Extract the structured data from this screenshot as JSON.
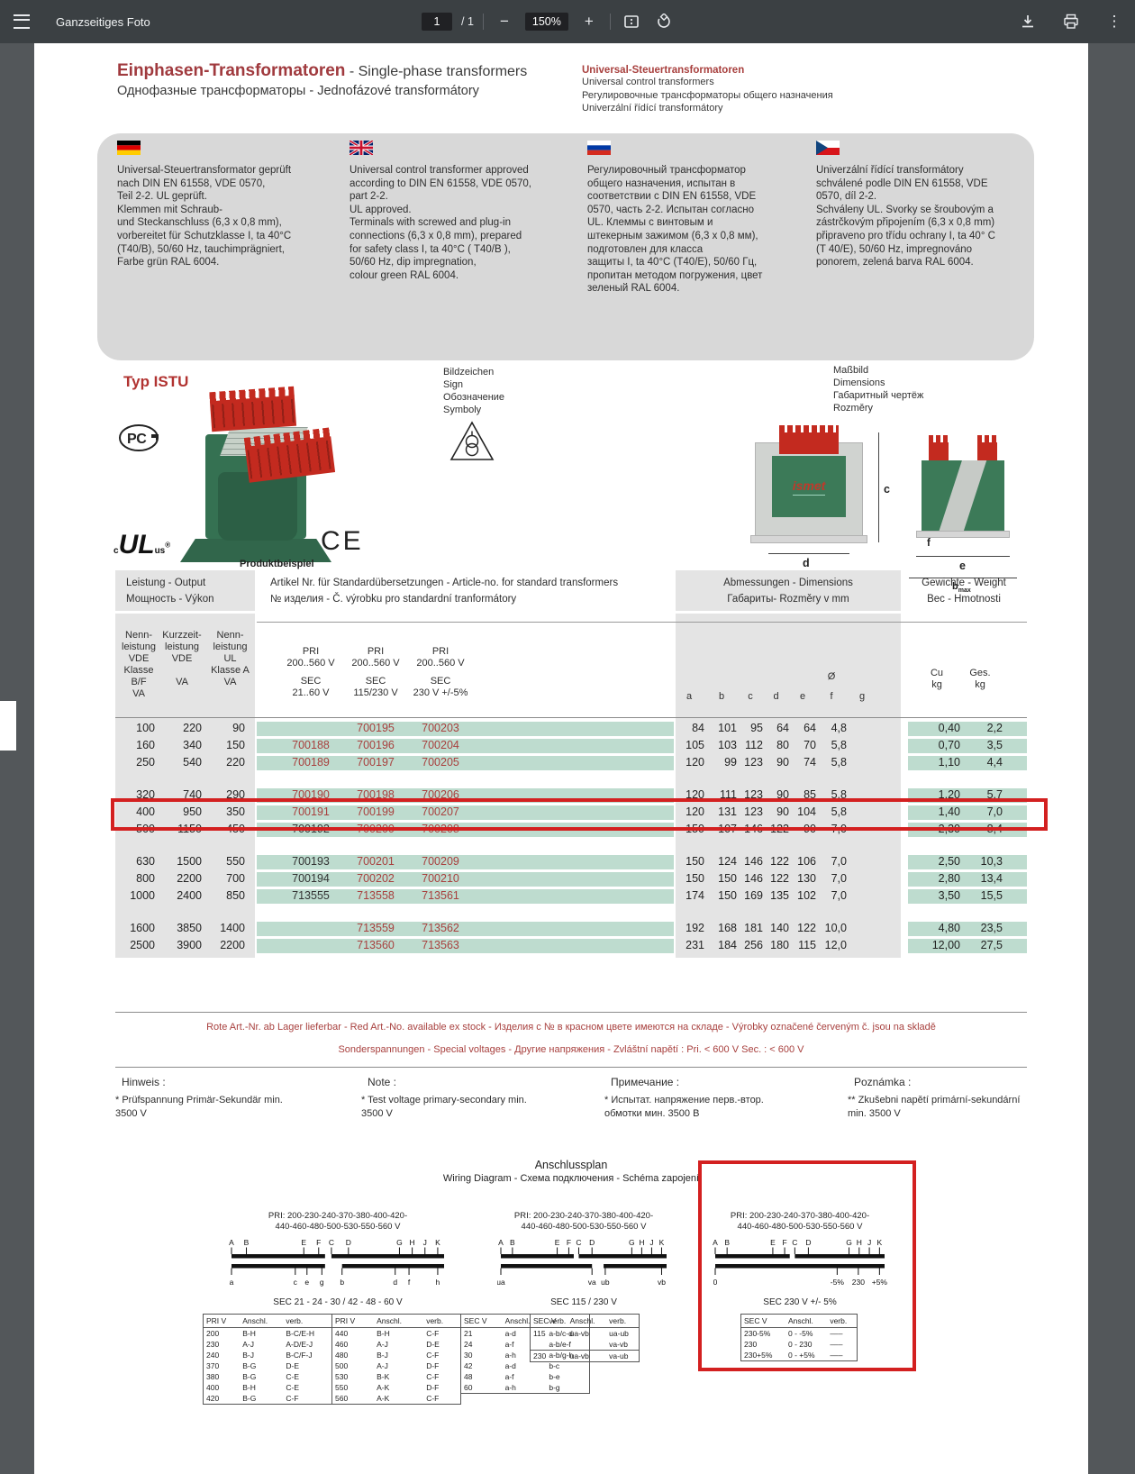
{
  "toolbar": {
    "title": "Ganzseitiges Foto",
    "page_current": "1",
    "page_total": "/ 1",
    "zoom_level": "150%"
  },
  "header": {
    "title_de": "Einphasen-Transformatoren",
    "title_en": " - Single-phase transformers",
    "subtitle": "Однофазные трансформаторы - Jednofázové transformátory",
    "right_title": "Universal-Steuertransformatoren",
    "right_lines": [
      "Universal control transformers",
      "Регулировочные трансформаторы общего назначения",
      "Univerzální řídící transformátory"
    ]
  },
  "intro": {
    "de": "Universal-Steuertransformator geprüft\nnach DIN EN 61558, VDE 0570,\nTeil 2-2. UL geprüft.\nKlemmen mit Schraub-\nund Steckanschluss (6,3 x 0,8 mm),\nvorbereitet für Schutzklasse I, ta 40°C\n(T40/B), 50/60 Hz, tauchimprägniert,\nFarbe grün RAL 6004.",
    "en": "Universal control transformer approved\naccording to DIN EN 61558, VDE 0570,\npart 2-2.\nUL approved.\nTerminals with screwed and plug-in\nconnections (6,3 x 0,8 mm), prepared\nfor safety class I, ta 40°C ( T40/B ),\n50/60 Hz, dip impregnation,\ncolour green RAL 6004.",
    "ru": "Регулировочный трансформатор\nобщего назначения, испытан в\nсоответствии с DIN EN 61558, VDE\n0570, часть 2-2. Испытан согласно\nUL. Клеммы с винтовым и\nштекерным зажимом (6,3 х 0,8 мм),\nподготовлен для класса\nзащиты I, ta 40°C (T40/E), 50/60 Гц,\nпропитан методом погружения, цвет\nзеленый RAL 6004.",
    "cz": "Univerzální řídící transformátory\nschválené podle DIN EN 61558, VDE\n0570, díl 2-2.\nSchváleny UL. Svorky se šroubovým a\nzástrčkovým připojením (6,3 x 0,8 mm)\npřipraveno pro třídu ochrany I, ta 40° C\n(T 40/E), 50/60 Hz, impregnováno\nponorem, zelená barva RAL 6004."
  },
  "product": {
    "typ": "Typ ISTU",
    "caption": "Produktbeispiel",
    "ce_mark": "CE",
    "brand": "ismet",
    "sign_block": "Bildzeichen\nSign\nОбозначение\nSymboly",
    "dims_block": "Maßbild\nDimensions\nГабаритный чертёж\nRozměry",
    "dim_c": "c",
    "dim_d": "d",
    "dim_a": "a",
    "dim_f": "f",
    "dim_e": "e",
    "dim_bmax": "bmax"
  },
  "table": {
    "header": {
      "output1": "Leistung - Output",
      "output2": "Мощность - Výkon",
      "art1": "Artikel Nr. für Standardübersetzungen - Article-no. for standard transformers",
      "art2": "№ изделия - Č. výrobku pro standardní tranformátory",
      "dims1": "Abmessungen  - Dimensions",
      "dims2": "Габариты- Rozměry v mm",
      "w1": "Gewichte - Weight",
      "w2": "Вес - Hmotnosti",
      "col_p1": [
        "Nenn-",
        "leistung",
        "VDE",
        "Klasse B/F",
        "VA"
      ],
      "col_p2": [
        "Kurzzeit-",
        "leistung",
        "VDE",
        "",
        "VA"
      ],
      "col_p3": [
        "Nenn-",
        "leistung",
        "UL",
        "Klasse A",
        "VA"
      ],
      "col_a1": [
        "PRI",
        "200..560 V",
        "SEC",
        "21..60 V"
      ],
      "col_a2": [
        "PRI",
        "200..560 V",
        "SEC",
        "115/230 V"
      ],
      "col_a3": [
        "PRI",
        "200..560 V",
        "SEC",
        "230 V +/-5%"
      ],
      "dim_letters": [
        "a",
        "b",
        "c",
        "d",
        "e",
        "f",
        "g"
      ],
      "dia_symbol": "Ø",
      "w_cu": [
        "Cu",
        "kg"
      ],
      "w_ges": [
        "Ges.",
        "kg"
      ]
    },
    "groups": [
      3,
      3,
      3,
      2
    ],
    "rows": [
      {
        "p": [
          "100",
          "220",
          "90"
        ],
        "art": [
          "",
          "700195",
          "700203"
        ],
        "red": [
          false,
          true,
          true
        ],
        "dims": [
          "84",
          "101",
          "95",
          "64",
          "64",
          "4,8"
        ],
        "cu": "0,40",
        "ges": "2,2",
        "highlight": false
      },
      {
        "p": [
          "160",
          "340",
          "150"
        ],
        "art": [
          "700188",
          "700196",
          "700204"
        ],
        "red": [
          true,
          true,
          true
        ],
        "dims": [
          "105",
          "103",
          "112",
          "80",
          "70",
          "5,8"
        ],
        "cu": "0,70",
        "ges": "3,5",
        "highlight": false
      },
      {
        "p": [
          "250",
          "540",
          "220"
        ],
        "art": [
          "700189",
          "700197",
          "700205"
        ],
        "red": [
          true,
          true,
          true
        ],
        "dims": [
          "120",
          "99",
          "123",
          "90",
          "74",
          "5,8"
        ],
        "cu": "1,10",
        "ges": "4,4",
        "highlight": false
      },
      {
        "p": [
          "320",
          "740",
          "290"
        ],
        "art": [
          "700190",
          "700198",
          "700206"
        ],
        "red": [
          true,
          true,
          true
        ],
        "dims": [
          "120",
          "111",
          "123",
          "90",
          "85",
          "5,8"
        ],
        "cu": "1,20",
        "ges": "5,7",
        "highlight": false
      },
      {
        "p": [
          "400",
          "950",
          "350"
        ],
        "art": [
          "700191",
          "700199",
          "700207"
        ],
        "red": [
          true,
          true,
          true
        ],
        "dims": [
          "120",
          "131",
          "123",
          "90",
          "104",
          "5,8"
        ],
        "cu": "1,40",
        "ges": "7,0",
        "highlight": true
      },
      {
        "p": [
          "500",
          "1150",
          "450"
        ],
        "art": [
          "700192",
          "700200",
          "700208"
        ],
        "red": [
          false,
          true,
          true
        ],
        "dims": [
          "150",
          "107",
          "146",
          "122",
          "90",
          "7,0"
        ],
        "cu": "2,30",
        "ges": "8,4",
        "highlight": false
      },
      {
        "p": [
          "630",
          "1500",
          "550"
        ],
        "art": [
          "700193",
          "700201",
          "700209"
        ],
        "red": [
          false,
          true,
          true
        ],
        "dims": [
          "150",
          "124",
          "146",
          "122",
          "106",
          "7,0"
        ],
        "cu": "2,50",
        "ges": "10,3",
        "highlight": false
      },
      {
        "p": [
          "800",
          "2200",
          "700"
        ],
        "art": [
          "700194",
          "700202",
          "700210"
        ],
        "red": [
          false,
          true,
          true
        ],
        "dims": [
          "150",
          "150",
          "146",
          "122",
          "130",
          "7,0"
        ],
        "cu": "2,80",
        "ges": "13,4",
        "highlight": false
      },
      {
        "p": [
          "1000",
          "2400",
          "850"
        ],
        "art": [
          "713555",
          "713558",
          "713561"
        ],
        "red": [
          false,
          true,
          true
        ],
        "dims": [
          "174",
          "150",
          "169",
          "135",
          "102",
          "7,0"
        ],
        "cu": "3,50",
        "ges": "15,5",
        "highlight": false
      },
      {
        "p": [
          "1600",
          "3850",
          "1400"
        ],
        "art": [
          "",
          "713559",
          "713562"
        ],
        "red": [
          false,
          true,
          true
        ],
        "dims": [
          "192",
          "168",
          "181",
          "140",
          "122",
          "10,0"
        ],
        "cu": "4,80",
        "ges": "23,5",
        "highlight": false
      },
      {
        "p": [
          "2500",
          "3900",
          "2200"
        ],
        "art": [
          "",
          "713560",
          "713563"
        ],
        "red": [
          false,
          true,
          true
        ],
        "dims": [
          "231",
          "184",
          "256",
          "180",
          "115",
          "12,0"
        ],
        "cu": "12,00",
        "ges": "27,5",
        "highlight": false
      }
    ]
  },
  "notes": {
    "red_line1": "Rote Art.-Nr. ab Lager lieferbar - Red Art.-No. available ex stock - Изделия с № в красном цвете имеются на складе - Výrobky označené červeným č. jsou na skladě",
    "red_line2": "Sonderspannungen - Special voltages  - Другие напряжения - Zvláštní napětí : Pri. < 600 V Sec. : < 600 V",
    "cols": [
      {
        "title": "Hinweis :",
        "body": "* Prüfspannung Primär-Sekundär min.\n  3500 V"
      },
      {
        "title": "Note :",
        "body": "* Test voltage primary-secondary min.\n  3500 V"
      },
      {
        "title": "Примечание :",
        "body": "* Испытат. напряжение перв.-втор.\n  обмотки мин. 3500 В"
      },
      {
        "title": "Poznámka :",
        "body": "** Zkušebni napětí primární-sekundární\n  min. 3500 V"
      }
    ]
  },
  "wiring": {
    "title": "Anschlussplan",
    "subtitle": "Wiring Diagram - Схема подключения - Schéma zapojení",
    "diagrams": [
      {
        "pri": "PRI: 200-230-240-370-380-400-420-\n440-460-480-500-530-550-560 V",
        "top_labels": [
          "A",
          "B",
          "E",
          "F",
          "C",
          "D",
          "G",
          "H",
          "J",
          "K"
        ],
        "bottom_labels": [
          "a",
          "c",
          "e",
          "g",
          "b",
          "d",
          "f",
          "h"
        ],
        "sec_caption": "SEC 21 - 24 - 30 / 42 - 48 - 60 V",
        "tables": [
          {
            "headers": [
              "PRI V",
              "Anschl.",
              "verb."
            ],
            "rows": [
              [
                "200",
                "B-H",
                "B-C/E-H"
              ],
              [
                "230",
                "A-J",
                "A-D/E-J"
              ],
              [
                "240",
                "B-J",
                "B-C/F-J"
              ],
              [
                "370",
                "B-G",
                "D-E"
              ],
              [
                "380",
                "B-G",
                "C-E"
              ],
              [
                "400",
                "B-H",
                "C-E"
              ],
              [
                "420",
                "B-G",
                "C-F"
              ]
            ]
          },
          {
            "headers": [
              "PRI V",
              "Anschl.",
              "verb."
            ],
            "rows": [
              [
                "440",
                "B-H",
                "C-F"
              ],
              [
                "460",
                "A-J",
                "D-E"
              ],
              [
                "480",
                "B-J",
                "C-F"
              ],
              [
                "500",
                "A-J",
                "D-F"
              ],
              [
                "530",
                "B-K",
                "C-F"
              ],
              [
                "550",
                "A-K",
                "D-F"
              ],
              [
                "560",
                "A-K",
                "C-F"
              ]
            ]
          },
          {
            "headers": [
              "SEC V",
              "Anschl.",
              "verb."
            ],
            "rows": [
              [
                "21",
                "a-d",
                "a-b/c-d"
              ],
              [
                "24",
                "a-f",
                "a-b/e-f"
              ],
              [
                "30",
                "a-h",
                "a-b/g-h"
              ],
              [
                "42",
                "a-d",
                "b-c"
              ],
              [
                "48",
                "a-f",
                "b-e"
              ],
              [
                "60",
                "a-h",
                "b-g"
              ]
            ]
          }
        ]
      },
      {
        "pri": "PRI: 200-230-240-370-380-400-420-\n440-460-480-500-530-550-560 V",
        "top_labels": [
          "A",
          "B",
          "E",
          "F",
          "C",
          "D",
          "G",
          "H",
          "J",
          "K"
        ],
        "bottom_labels": [
          "ua",
          "va",
          "ub",
          "vb"
        ],
        "sec_caption": "SEC 115 / 230 V",
        "tables": [
          {
            "headers": [
              "SEC V",
              "Anschl.",
              "verb."
            ],
            "rows": [
              [
                "115",
                "ua-vb",
                "ua-ub"
              ],
              [
                "",
                "",
                "va-vb"
              ],
              [
                "230",
                "ua-vb",
                "va-ub"
              ]
            ],
            "sep_before_row": 2
          }
        ]
      },
      {
        "pri": "PRI: 200-230-240-370-380-400-420-\n440-460-480-500-530-550-560 V",
        "top_labels": [
          "A",
          "B",
          "E",
          "F",
          "C",
          "D",
          "G",
          "H",
          "J",
          "K"
        ],
        "bottom_labels": [
          "0",
          "-5%",
          "230",
          "+5%"
        ],
        "sec_caption": "SEC 230 V +/- 5%",
        "tables": [
          {
            "headers": [
              "SEC V",
              "Anschl.",
              "verb."
            ],
            "rows": [
              [
                "230-5%",
                "0 -  -5%",
                "–––"
              ],
              [
                "230",
                "0 -  230",
                "–––"
              ],
              [
                "230+5%",
                "0 -  +5%",
                "–––"
              ]
            ]
          }
        ]
      }
    ]
  },
  "colors": {
    "accent_red": "#a8403e",
    "annotation_red": "#d32020",
    "stripe_green": "#bedccf",
    "band_gray": "#e4e4e4"
  }
}
